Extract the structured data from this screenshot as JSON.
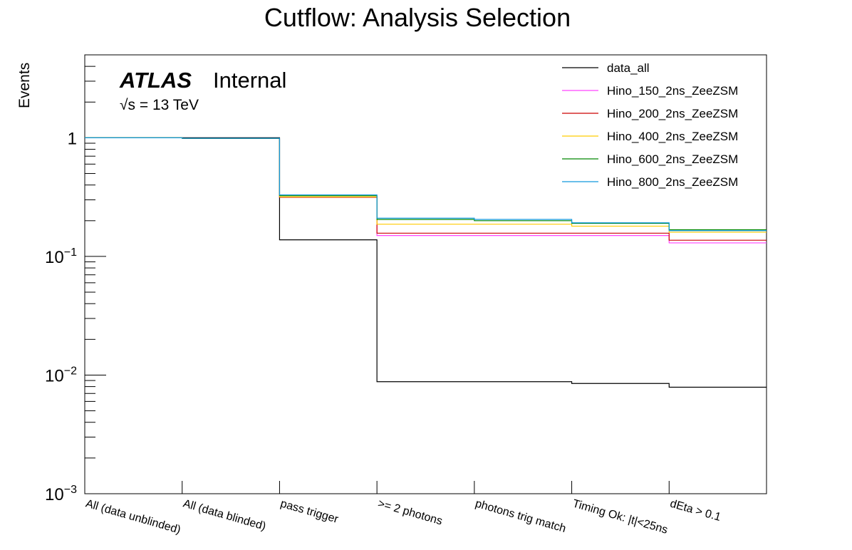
{
  "chart_data": {
    "type": "line",
    "title": "Cutflow: Analysis Selection",
    "xlabel": "",
    "ylabel": "Events",
    "yscale": "log",
    "ylim": [
      0.001,
      5
    ],
    "grid": false,
    "legend_position": "top-right",
    "atlas_label": {
      "experiment": "ATLAS",
      "status": "Internal",
      "energy": "√s = 13 TeV"
    },
    "y_tick_labels": [
      {
        "value": 1,
        "base": "1",
        "exp": ""
      },
      {
        "value": 0.1,
        "base": "10",
        "exp": "−1"
      },
      {
        "value": 0.01,
        "base": "10",
        "exp": "−2"
      },
      {
        "value": 0.001,
        "base": "10",
        "exp": "−3"
      }
    ],
    "categories": [
      "All (data unblinded)",
      "All (data blinded)",
      "pass trigger",
      ">= 2 photons",
      "photons trig match",
      "Timing Ok: |t|<25ns",
      "dEta > 0.1"
    ],
    "series": [
      {
        "name": "data_all",
        "color": "#000000",
        "values": [
          1.0,
          1.0,
          0.138,
          0.0088,
          0.0088,
          0.0085,
          0.0079
        ]
      },
      {
        "name": "Hino_150_2ns_ZeeZSM",
        "color": "#ff44ff",
        "values": [
          1.0,
          0.99,
          0.315,
          0.15,
          0.15,
          0.15,
          0.13
        ]
      },
      {
        "name": "Hino_200_2ns_ZeeZSM",
        "color": "#cc0000",
        "values": [
          1.0,
          0.99,
          0.315,
          0.157,
          0.157,
          0.157,
          0.137
        ]
      },
      {
        "name": "Hino_400_2ns_ZeeZSM",
        "color": "#ffcc00",
        "values": [
          1.0,
          0.99,
          0.318,
          0.187,
          0.187,
          0.18,
          0.16
        ]
      },
      {
        "name": "Hino_600_2ns_ZeeZSM",
        "color": "#008800",
        "values": [
          1.0,
          0.99,
          0.325,
          0.205,
          0.2,
          0.19,
          0.168
        ]
      },
      {
        "name": "Hino_800_2ns_ZeeZSM",
        "color": "#1199dd",
        "values": [
          1.0,
          0.99,
          0.33,
          0.21,
          0.205,
          0.192,
          0.165
        ]
      }
    ]
  }
}
